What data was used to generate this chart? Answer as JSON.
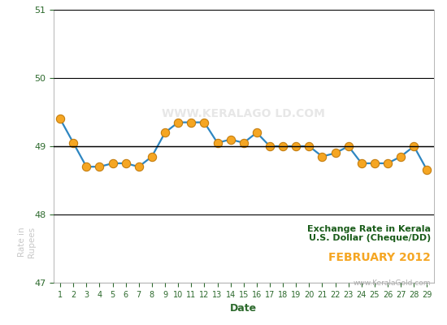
{
  "dates": [
    1,
    2,
    3,
    4,
    5,
    6,
    7,
    8,
    9,
    10,
    11,
    12,
    13,
    14,
    15,
    16,
    17,
    18,
    19,
    20,
    21,
    22,
    23,
    24,
    25,
    26,
    27,
    28,
    29
  ],
  "values": [
    49.4,
    49.05,
    48.7,
    48.7,
    48.75,
    48.75,
    48.7,
    48.85,
    49.2,
    49.35,
    49.35,
    49.35,
    49.05,
    49.1,
    49.05,
    49.2,
    49.0,
    49.0,
    49.0,
    49.0,
    48.85,
    48.9,
    49.0,
    48.75,
    48.75,
    48.75,
    48.85,
    49.0,
    48.65
  ],
  "line_color": "#2e86c1",
  "marker_color": "#f5a623",
  "marker_edge_color": "#c47d0e",
  "reference_line_y": 49.0,
  "reference_line_color": "#000000",
  "ylim": [
    47.0,
    51.0
  ],
  "yticks": [
    47.0,
    48.0,
    49.0,
    50.0,
    51.0
  ],
  "xlabel": "Date",
  "ylabel_text": "Rate in\nRupees",
  "title_line1": "Exchange Rate in Kerala",
  "title_line2": "U.S. Dollar (Cheque/DD)",
  "title_line3": "FEBRUARY 2012",
  "title_color1": "#1a5c1a",
  "title_color3": "#f5a623",
  "watermark_chart": "WWW.KERALAGO LD.COM",
  "watermark_ylabel": "Rate in\nRupees",
  "watermark_bottom": "www.KeralaGold.com",
  "watermark_color": "#c8c8c8",
  "bg_color": "#ffffff",
  "grid_color": "#000000",
  "tick_label_color": "#2d6a2d"
}
